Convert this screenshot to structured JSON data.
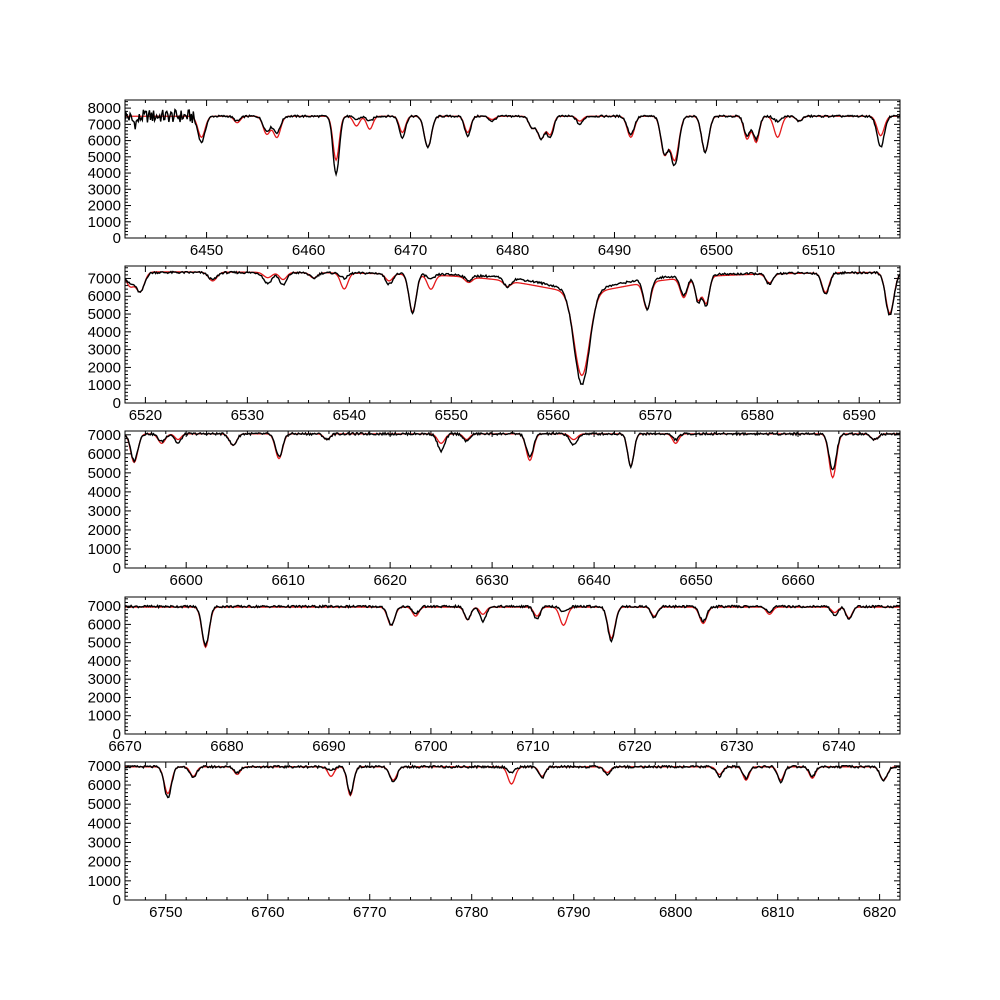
{
  "chart_data": [
    {
      "type": "line",
      "xlim": [
        6442,
        6518
      ],
      "ylim": [
        0,
        8500
      ],
      "xticks": [
        6450,
        6460,
        6470,
        6480,
        6490,
        6500,
        6510
      ],
      "yticks": [
        0,
        1000,
        2000,
        3000,
        4000,
        5000,
        6000,
        7000,
        8000
      ],
      "continuum": {
        "observed": 7500,
        "model": 7500
      },
      "lines": [
        {
          "x": 6443.0,
          "depth": 400,
          "depth_model": 0,
          "width": 0.3
        },
        {
          "x": 6449.5,
          "depth": 1600,
          "depth_model": 1300,
          "width": 0.35
        },
        {
          "x": 6453.0,
          "depth": 300,
          "depth_model": 400,
          "width": 0.3
        },
        {
          "x": 6455.9,
          "depth": 900,
          "depth_model": 1100,
          "width": 0.35
        },
        {
          "x": 6456.9,
          "depth": 1000,
          "depth_model": 1300,
          "width": 0.35
        },
        {
          "x": 6462.7,
          "depth": 3600,
          "depth_model": 2700,
          "width": 0.3
        },
        {
          "x": 6464.7,
          "depth": 200,
          "depth_model": 600,
          "width": 0.3
        },
        {
          "x": 6466.0,
          "depth": 300,
          "depth_model": 800,
          "width": 0.3
        },
        {
          "x": 6469.2,
          "depth": 1300,
          "depth_model": 1000,
          "width": 0.3
        },
        {
          "x": 6471.7,
          "depth": 1900,
          "depth_model": 1900,
          "width": 0.35
        },
        {
          "x": 6475.6,
          "depth": 1200,
          "depth_model": 1000,
          "width": 0.3
        },
        {
          "x": 6478.0,
          "depth": 300,
          "depth_model": 200,
          "width": 0.3
        },
        {
          "x": 6481.9,
          "depth": 700,
          "depth_model": 700,
          "width": 0.3
        },
        {
          "x": 6482.8,
          "depth": 1400,
          "depth_model": 1400,
          "width": 0.35
        },
        {
          "x": 6483.7,
          "depth": 1300,
          "depth_model": 1100,
          "width": 0.3
        },
        {
          "x": 6486.6,
          "depth": 500,
          "depth_model": 300,
          "width": 0.3
        },
        {
          "x": 6491.6,
          "depth": 1100,
          "depth_model": 1300,
          "width": 0.35
        },
        {
          "x": 6494.9,
          "depth": 2200,
          "depth_model": 2300,
          "width": 0.35
        },
        {
          "x": 6495.9,
          "depth": 3000,
          "depth_model": 2700,
          "width": 0.4
        },
        {
          "x": 6498.9,
          "depth": 2200,
          "depth_model": 2200,
          "width": 0.35
        },
        {
          "x": 6503.0,
          "depth": 1200,
          "depth_model": 1400,
          "width": 0.3
        },
        {
          "x": 6503.9,
          "depth": 1400,
          "depth_model": 1600,
          "width": 0.3
        },
        {
          "x": 6506.0,
          "depth": 300,
          "depth_model": 1300,
          "width": 0.35
        },
        {
          "x": 6508.1,
          "depth": 300,
          "depth_model": 300,
          "width": 0.3
        },
        {
          "x": 6516.1,
          "depth": 1900,
          "depth_model": 1200,
          "width": 0.35
        }
      ]
    },
    {
      "type": "line",
      "xlim": [
        6518,
        6594
      ],
      "ylim": [
        0,
        7700
      ],
      "xticks": [
        6520,
        6530,
        6540,
        6550,
        6560,
        6570,
        6580,
        6590
      ],
      "yticks": [
        0,
        1000,
        2000,
        3000,
        4000,
        5000,
        6000,
        7000
      ],
      "continuum": {
        "observed": 7350,
        "model": 7400
      },
      "broad": {
        "x": 6562.8,
        "depth": 5300,
        "depth_model": 4700,
        "width": 0.75,
        "wing_depth": 1000,
        "wing_width": 5
      },
      "lines": [
        {
          "x": 6518.5,
          "depth": 600,
          "depth_model": 800,
          "width": 0.4
        },
        {
          "x": 6519.5,
          "depth": 1100,
          "depth_model": 1100,
          "width": 0.4
        },
        {
          "x": 6526.6,
          "depth": 400,
          "depth_model": 500,
          "width": 0.4
        },
        {
          "x": 6532.0,
          "depth": 600,
          "depth_model": 300,
          "width": 0.4
        },
        {
          "x": 6533.5,
          "depth": 700,
          "depth_model": 400,
          "width": 0.35
        },
        {
          "x": 6536.5,
          "depth": 300,
          "depth_model": 300,
          "width": 0.35
        },
        {
          "x": 6539.5,
          "depth": 300,
          "depth_model": 900,
          "width": 0.35
        },
        {
          "x": 6543.9,
          "depth": 600,
          "depth_model": 400,
          "width": 0.35
        },
        {
          "x": 6546.2,
          "depth": 2200,
          "depth_model": 2100,
          "width": 0.35
        },
        {
          "x": 6548.0,
          "depth": 300,
          "depth_model": 800,
          "width": 0.35
        },
        {
          "x": 6551.7,
          "depth": 300,
          "depth_model": 300,
          "width": 0.35
        },
        {
          "x": 6555.5,
          "depth": 500,
          "depth_model": 300,
          "width": 0.35
        },
        {
          "x": 6569.2,
          "depth": 1700,
          "depth_model": 1500,
          "width": 0.35
        },
        {
          "x": 6572.8,
          "depth": 1100,
          "depth_model": 1100,
          "width": 0.35
        },
        {
          "x": 6574.2,
          "depth": 1500,
          "depth_model": 1300,
          "width": 0.3
        },
        {
          "x": 6575.0,
          "depth": 1700,
          "depth_model": 1500,
          "width": 0.3
        },
        {
          "x": 6581.2,
          "depth": 600,
          "depth_model": 500,
          "width": 0.35
        },
        {
          "x": 6586.7,
          "depth": 1200,
          "depth_model": 1100,
          "width": 0.35
        },
        {
          "x": 6593.0,
          "depth": 2400,
          "depth_model": 2300,
          "width": 0.4
        }
      ]
    },
    {
      "type": "line",
      "xlim": [
        6594,
        6670
      ],
      "ylim": [
        0,
        7200
      ],
      "xticks": [
        6600,
        6610,
        6620,
        6630,
        6640,
        6650,
        6660
      ],
      "yticks": [
        0,
        1000,
        2000,
        3000,
        4000,
        5000,
        6000,
        7000
      ],
      "continuum": {
        "observed": 7050,
        "model": 7050
      },
      "lines": [
        {
          "x": 6594.9,
          "depth": 1400,
          "depth_model": 1500,
          "width": 0.35
        },
        {
          "x": 6597.6,
          "depth": 400,
          "depth_model": 500,
          "width": 0.35
        },
        {
          "x": 6599.2,
          "depth": 500,
          "depth_model": 300,
          "width": 0.3
        },
        {
          "x": 6604.6,
          "depth": 600,
          "depth_model": 600,
          "width": 0.35
        },
        {
          "x": 6609.1,
          "depth": 1200,
          "depth_model": 1300,
          "width": 0.35
        },
        {
          "x": 6613.8,
          "depth": 300,
          "depth_model": 300,
          "width": 0.3
        },
        {
          "x": 6625.0,
          "depth": 900,
          "depth_model": 500,
          "width": 0.35
        },
        {
          "x": 6627.5,
          "depth": 400,
          "depth_model": 300,
          "width": 0.3
        },
        {
          "x": 6633.7,
          "depth": 1200,
          "depth_model": 1400,
          "width": 0.35
        },
        {
          "x": 6638.0,
          "depth": 600,
          "depth_model": 300,
          "width": 0.35
        },
        {
          "x": 6643.6,
          "depth": 1700,
          "depth_model": 1700,
          "width": 0.3
        },
        {
          "x": 6648.0,
          "depth": 300,
          "depth_model": 500,
          "width": 0.3
        },
        {
          "x": 6663.4,
          "depth": 1900,
          "depth_model": 2300,
          "width": 0.35
        },
        {
          "x": 6667.5,
          "depth": 300,
          "depth_model": 300,
          "width": 0.35
        }
      ]
    },
    {
      "type": "line",
      "xlim": [
        6670,
        6746
      ],
      "ylim": [
        0,
        7500
      ],
      "xticks": [
        6670,
        6680,
        6690,
        6700,
        6710,
        6720,
        6730,
        6740
      ],
      "yticks": [
        0,
        1000,
        2000,
        3000,
        4000,
        5000,
        6000,
        7000
      ],
      "continuum": {
        "observed": 6980,
        "model": 6950
      },
      "lines": [
        {
          "x": 6677.9,
          "depth": 2100,
          "depth_model": 2200,
          "width": 0.35
        },
        {
          "x": 6696.1,
          "depth": 1000,
          "depth_model": 1000,
          "width": 0.35
        },
        {
          "x": 6698.5,
          "depth": 400,
          "depth_model": 500,
          "width": 0.3
        },
        {
          "x": 6703.6,
          "depth": 700,
          "depth_model": 700,
          "width": 0.3
        },
        {
          "x": 6705.1,
          "depth": 800,
          "depth_model": 400,
          "width": 0.3
        },
        {
          "x": 6710.4,
          "depth": 700,
          "depth_model": 500,
          "width": 0.3
        },
        {
          "x": 6713.0,
          "depth": 300,
          "depth_model": 1000,
          "width": 0.35
        },
        {
          "x": 6717.7,
          "depth": 1900,
          "depth_model": 1700,
          "width": 0.35
        },
        {
          "x": 6721.9,
          "depth": 600,
          "depth_model": 500,
          "width": 0.3
        },
        {
          "x": 6726.7,
          "depth": 800,
          "depth_model": 900,
          "width": 0.35
        },
        {
          "x": 6733.2,
          "depth": 300,
          "depth_model": 400,
          "width": 0.3
        },
        {
          "x": 6739.6,
          "depth": 500,
          "depth_model": 300,
          "width": 0.3
        },
        {
          "x": 6741.0,
          "depth": 700,
          "depth_model": 600,
          "width": 0.3
        }
      ]
    },
    {
      "type": "line",
      "xlim": [
        6746,
        6822
      ],
      "ylim": [
        0,
        7200
      ],
      "xticks": [
        6750,
        6760,
        6770,
        6780,
        6790,
        6800,
        6810,
        6820
      ],
      "yticks": [
        0,
        1000,
        2000,
        3000,
        4000,
        5000,
        6000,
        7000
      ],
      "continuum": {
        "observed": 6950,
        "model": 6950
      },
      "lines": [
        {
          "x": 6750.2,
          "depth": 1600,
          "depth_model": 1400,
          "width": 0.35
        },
        {
          "x": 6752.7,
          "depth": 600,
          "depth_model": 500,
          "width": 0.3
        },
        {
          "x": 6757.0,
          "depth": 300,
          "depth_model": 400,
          "width": 0.3
        },
        {
          "x": 6766.2,
          "depth": 200,
          "depth_model": 500,
          "width": 0.3
        },
        {
          "x": 6768.1,
          "depth": 1400,
          "depth_model": 1500,
          "width": 0.3
        },
        {
          "x": 6772.3,
          "depth": 800,
          "depth_model": 700,
          "width": 0.35
        },
        {
          "x": 6783.9,
          "depth": 300,
          "depth_model": 900,
          "width": 0.35
        },
        {
          "x": 6786.9,
          "depth": 600,
          "depth_model": 500,
          "width": 0.3
        },
        {
          "x": 6793.3,
          "depth": 400,
          "depth_model": 300,
          "width": 0.3
        },
        {
          "x": 6804.3,
          "depth": 500,
          "depth_model": 400,
          "width": 0.3
        },
        {
          "x": 6806.9,
          "depth": 600,
          "depth_model": 700,
          "width": 0.3
        },
        {
          "x": 6810.3,
          "depth": 800,
          "depth_model": 700,
          "width": 0.3
        },
        {
          "x": 6813.4,
          "depth": 500,
          "depth_model": 600,
          "width": 0.3
        },
        {
          "x": 6820.4,
          "depth": 700,
          "depth_model": 700,
          "width": 0.35
        }
      ]
    }
  ],
  "colors": {
    "observed": "#000000",
    "model": "#e41a1c",
    "axes": "#000000",
    "background": "#ffffff"
  }
}
